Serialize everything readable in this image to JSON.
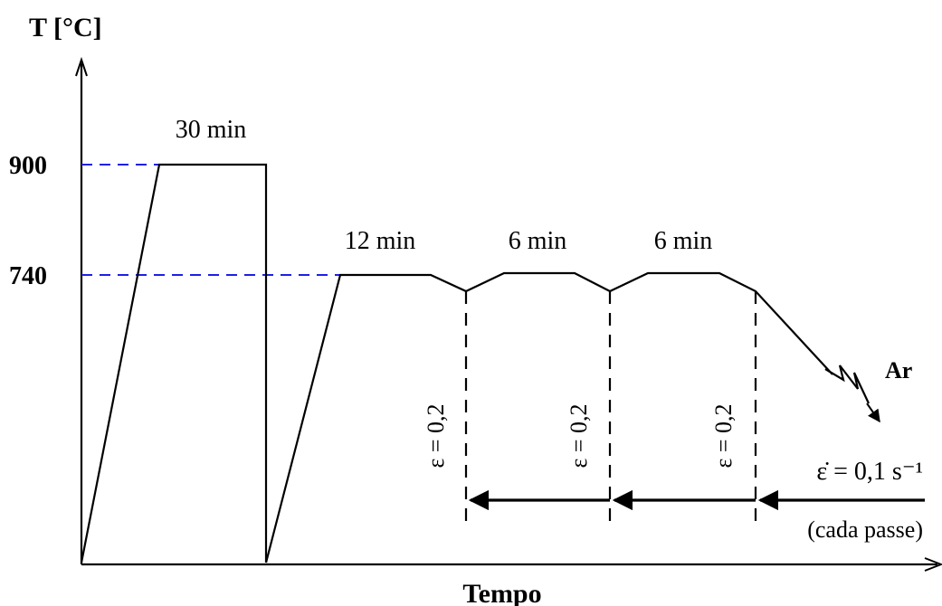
{
  "axes": {
    "y_label": "T [°C]",
    "x_label": "Tempo",
    "y_ticks": [
      "900",
      "740"
    ]
  },
  "holds": {
    "first": "30 min",
    "second": "12 min",
    "third": "6 min",
    "fourth": "6 min"
  },
  "passes": [
    "ε = 0,2",
    "ε = 0,2",
    "ε = 0,2"
  ],
  "rate": {
    "label": "ε̇ = 0,1 s⁻¹",
    "note": "(cada passe)"
  },
  "cooling": "Ar",
  "colors": {
    "line": "#000000",
    "guide": "#1f1fe6"
  }
}
